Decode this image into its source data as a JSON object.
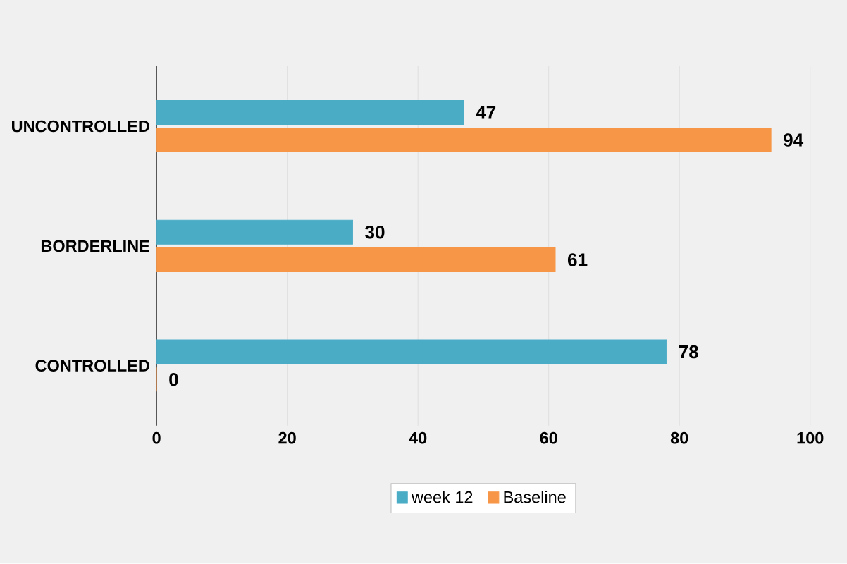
{
  "chart_data": {
    "type": "bar",
    "orientation": "horizontal",
    "categories": [
      "UNCONTROLLED",
      "BORDERLINE",
      "CONTROLLED"
    ],
    "series": [
      {
        "name": "week 12",
        "color": "#4bacc6",
        "values": [
          47,
          30,
          78
        ]
      },
      {
        "name": "Baseline",
        "color": "#f79646",
        "values": [
          94,
          61,
          0
        ]
      }
    ],
    "xlim": [
      0,
      100
    ],
    "xticks": [
      0,
      20,
      40,
      60,
      80,
      100
    ],
    "grid": "x",
    "legend": "bottom",
    "data_labels": true
  }
}
